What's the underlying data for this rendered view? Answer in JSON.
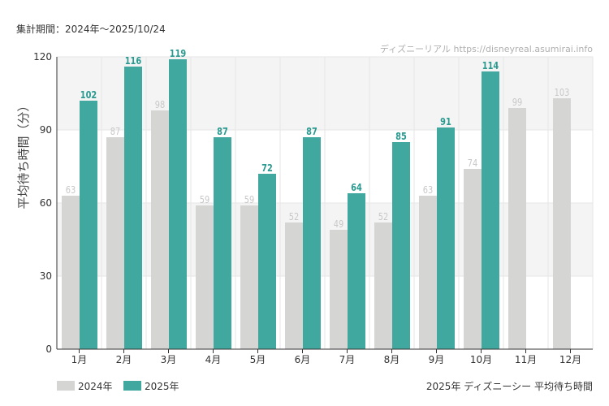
{
  "period_label": "集計期間：2024年～2025/10/24",
  "watermark": "ディズニーリアル https://disneyreal.asumirai.info",
  "footer_title": "2025年 ディズニーシー 平均待ち時間",
  "colors": {
    "series_2024": "#d5d5d4",
    "series_2025": "#40a89f",
    "label_2024": "#c8c8c8",
    "label_2025": "#2a9a90",
    "axis_text": "#333333",
    "band": "#f4f4f4",
    "grid": "#e6e6e6"
  },
  "chart_data": {
    "type": "bar",
    "categories": [
      "1月",
      "2月",
      "3月",
      "4月",
      "5月",
      "6月",
      "7月",
      "8月",
      "9月",
      "10月",
      "11月",
      "12月"
    ],
    "series": [
      {
        "name": "2024年",
        "values": [
          63,
          87,
          98,
          59,
          59,
          52,
          49,
          52,
          63,
          74,
          99,
          103
        ]
      },
      {
        "name": "2025年",
        "values": [
          102,
          116,
          119,
          87,
          72,
          87,
          64,
          85,
          91,
          114,
          null,
          null
        ]
      }
    ],
    "ylabel": "平均待ち時間（分）",
    "ylim": [
      0,
      120
    ],
    "yticks": [
      0,
      30,
      60,
      90,
      120
    ],
    "grid": true,
    "legend": "bottom-left"
  }
}
